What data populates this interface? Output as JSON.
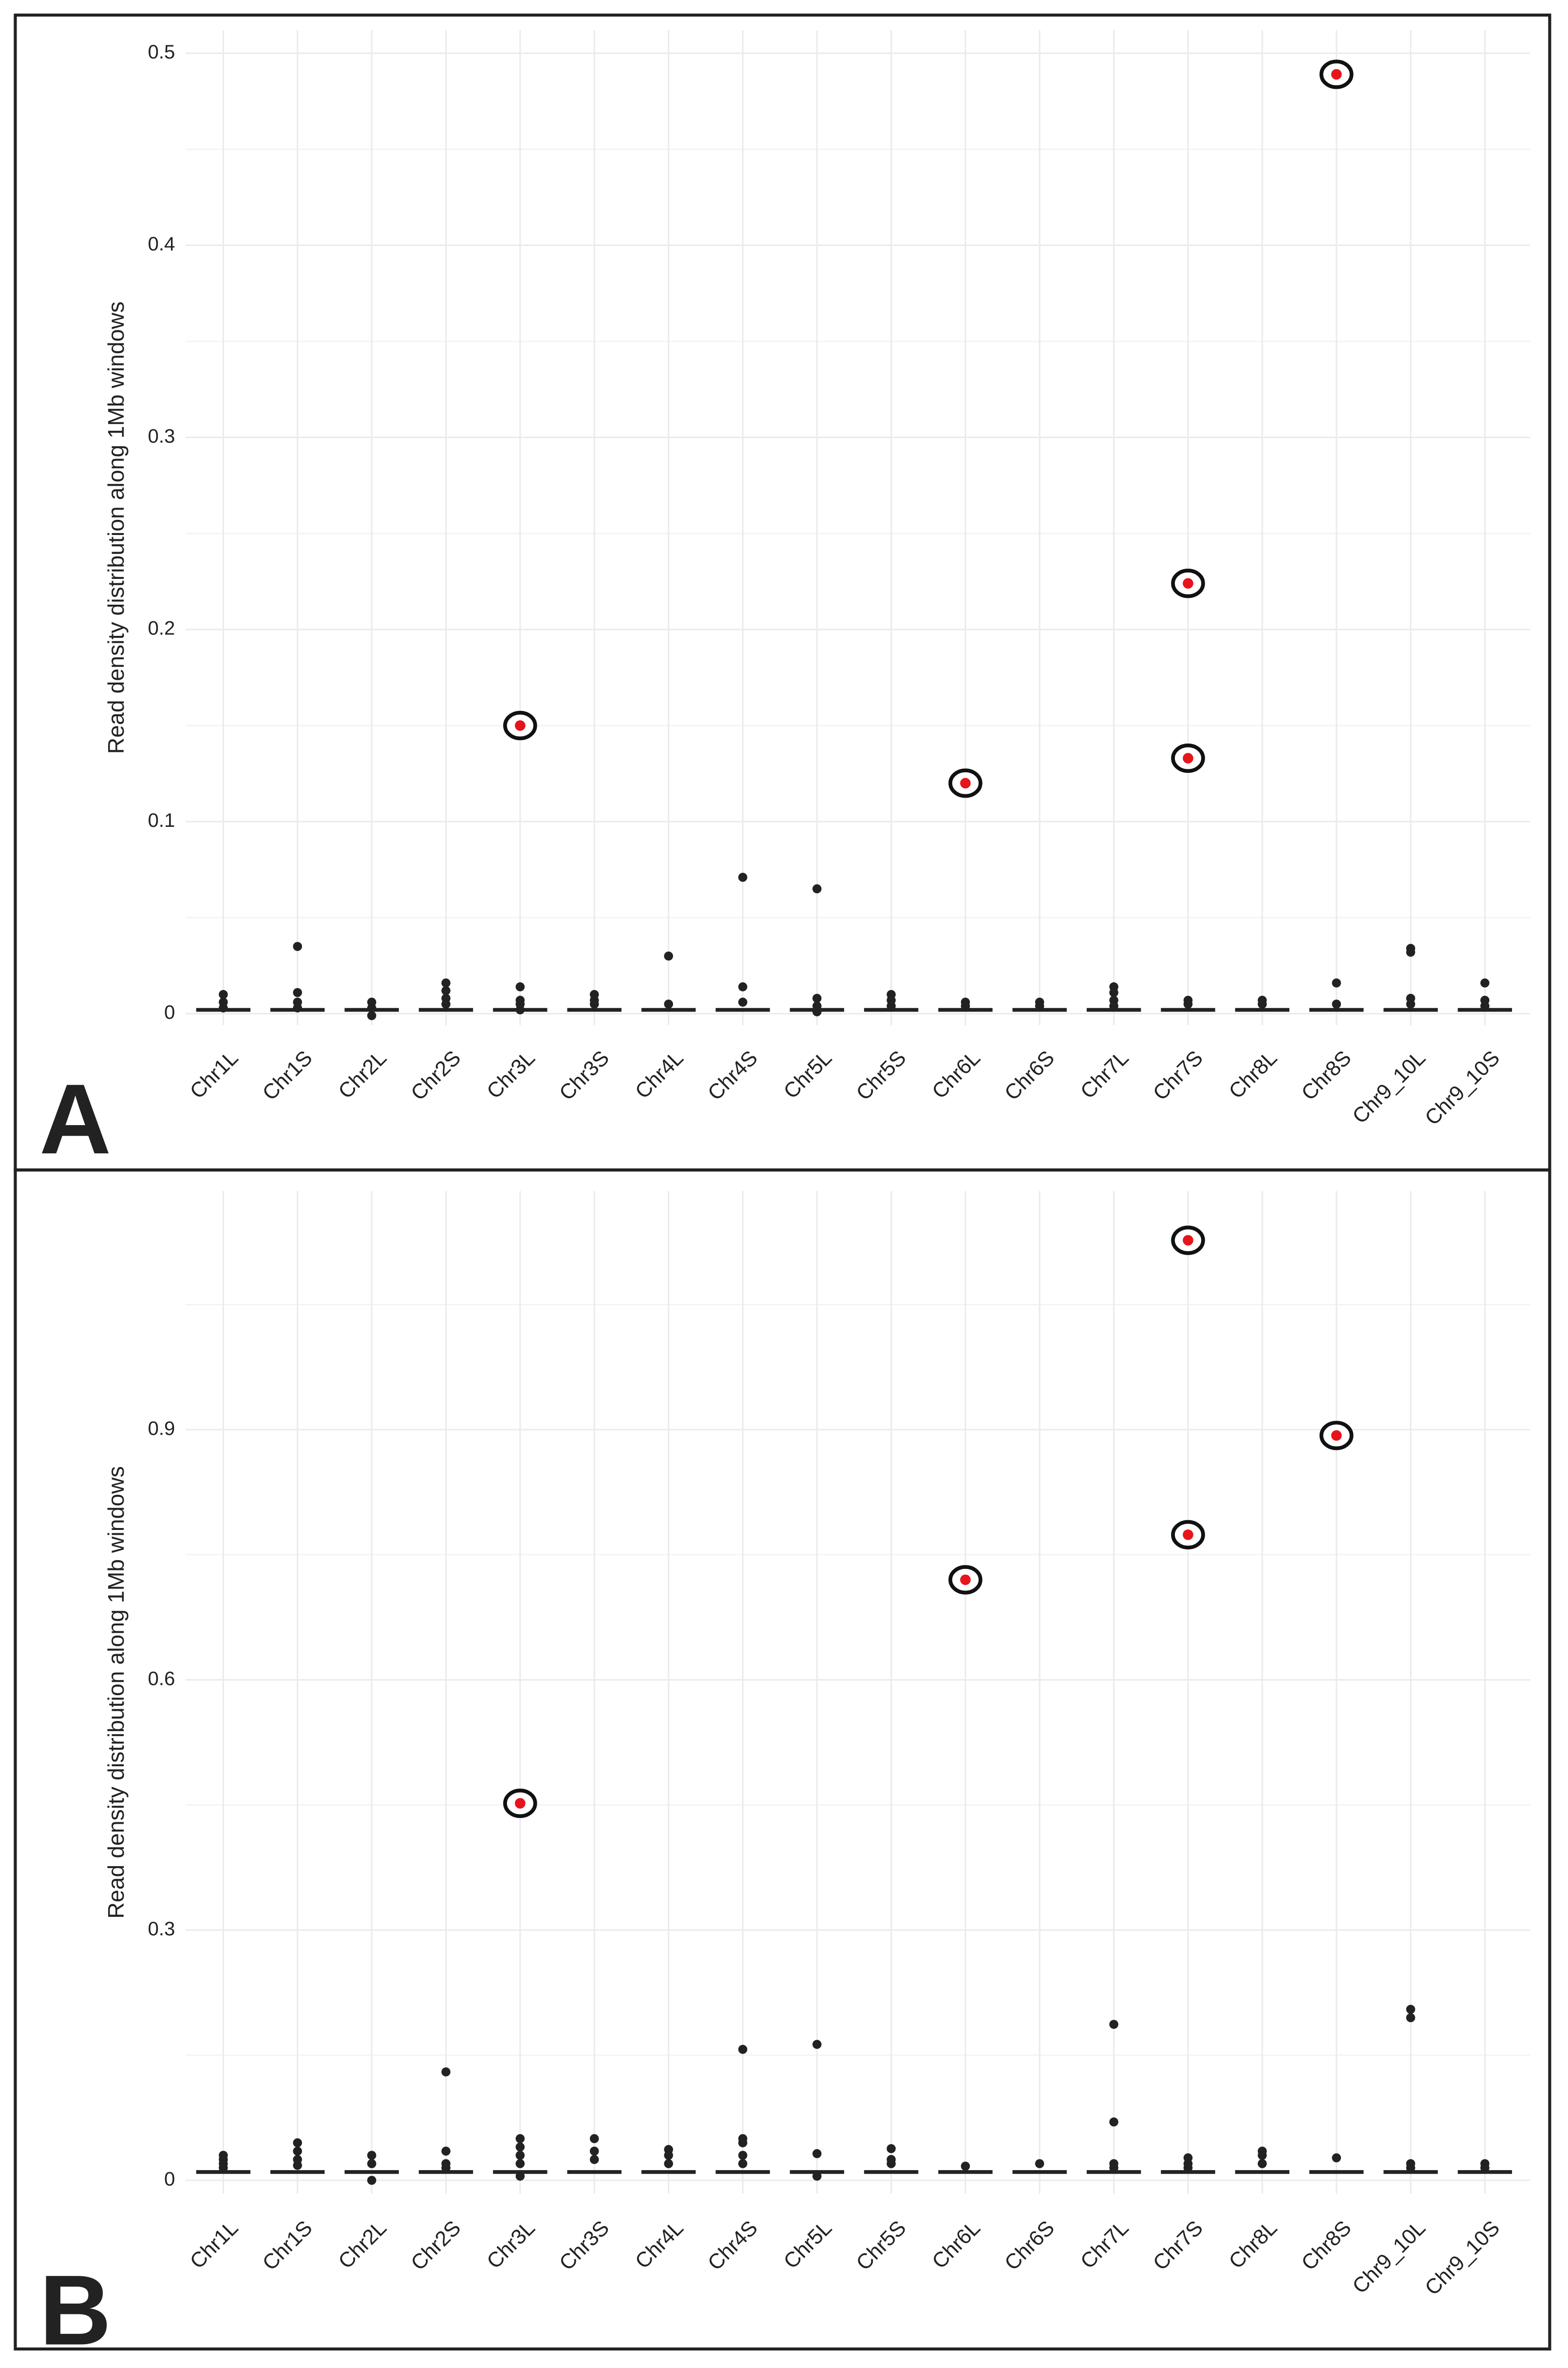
{
  "chart_data": [
    {
      "type": "box",
      "panel_label": "A",
      "y_label": "Read density distribution along 1Mb windows",
      "categories": [
        "Chr1L",
        "Chr1S",
        "Chr2L",
        "Chr2S",
        "Chr3L",
        "Chr3S",
        "Chr4L",
        "Chr4S",
        "Chr5L",
        "Chr5S",
        "Chr6L",
        "Chr6S",
        "Chr7L",
        "Chr7S",
        "Chr8L",
        "Chr8S",
        "Chr9_10L",
        "Chr9_10S"
      ],
      "medians": [
        0.002,
        0.002,
        0.002,
        0.002,
        0.002,
        0.002,
        0.002,
        0.002,
        0.002,
        0.002,
        0.002,
        0.002,
        0.002,
        0.002,
        0.002,
        0.002,
        0.002,
        0.002
      ],
      "outliers": [
        [
          0.01,
          0.006,
          0.003
        ],
        [
          0.035,
          0.011,
          0.006,
          0.003
        ],
        [
          0.006,
          0.003,
          -0.001
        ],
        [
          0.016,
          0.012,
          0.008,
          0.005
        ],
        [
          0.014,
          0.007,
          0.005,
          0.002
        ],
        [
          0.01,
          0.007,
          0.005
        ],
        [
          0.03,
          0.005
        ],
        [
          0.071,
          0.014,
          0.006
        ],
        [
          0.065,
          0.008,
          0.004,
          0.001
        ],
        [
          0.01,
          0.007,
          0.004
        ],
        [
          0.006,
          0.004
        ],
        [
          0.006,
          0.004
        ],
        [
          0.014,
          0.011,
          0.007,
          0.004
        ],
        [
          0.007,
          0.005
        ],
        [
          0.007,
          0.005
        ],
        [
          0.016,
          0.005
        ],
        [
          0.034,
          0.032,
          0.008,
          0.005
        ],
        [
          0.016,
          0.007,
          0.004
        ]
      ],
      "highlighted": [
        [],
        [],
        [],
        [],
        [
          0.15
        ],
        [],
        [],
        [],
        [],
        [],
        [
          0.12
        ],
        [],
        [],
        [
          0.224,
          0.133
        ],
        [],
        [
          0.489
        ],
        [],
        []
      ],
      "highlight_color": "#e8141c",
      "color": "#222222",
      "ylim": [
        -0.006,
        0.512
      ],
      "yticks": [
        0,
        0.1,
        0.2,
        0.3,
        0.4,
        0.5
      ],
      "grid": true
    },
    {
      "type": "box",
      "panel_label": "B",
      "y_label": "Read density distribution along 1Mb windows",
      "categories": [
        "Chr1L",
        "Chr1S",
        "Chr2L",
        "Chr2S",
        "Chr3L",
        "Chr3S",
        "Chr4L",
        "Chr4S",
        "Chr5L",
        "Chr5S",
        "Chr6L",
        "Chr6S",
        "Chr7L",
        "Chr7S",
        "Chr8L",
        "Chr8S",
        "Chr9_10L",
        "Chr9_10S"
      ],
      "medians": [
        0.01,
        0.01,
        0.01,
        0.01,
        0.01,
        0.01,
        0.01,
        0.01,
        0.01,
        0.01,
        0.01,
        0.01,
        0.01,
        0.01,
        0.01,
        0.01,
        0.01,
        0.01
      ],
      "outliers": [
        [
          0.03,
          0.025,
          0.02,
          0.015
        ],
        [
          0.045,
          0.035,
          0.025,
          0.018
        ],
        [
          0.03,
          0.02,
          0.0
        ],
        [
          0.13,
          0.035,
          0.02,
          0.015
        ],
        [
          0.05,
          0.04,
          0.03,
          0.02,
          0.005
        ],
        [
          0.05,
          0.035,
          0.025
        ],
        [
          0.037,
          0.03,
          0.02
        ],
        [
          0.157,
          0.05,
          0.045,
          0.03,
          0.02
        ],
        [
          0.163,
          0.032,
          0.005
        ],
        [
          0.038,
          0.025,
          0.02
        ],
        [
          0.017
        ],
        [
          0.02
        ],
        [
          0.187,
          0.07,
          0.02,
          0.015
        ],
        [
          0.027,
          0.02,
          0.015
        ],
        [
          0.035,
          0.03,
          0.02
        ],
        [
          0.027
        ],
        [
          0.205,
          0.195,
          0.02,
          0.015
        ],
        [
          0.02,
          0.015
        ]
      ],
      "highlighted": [
        [],
        [],
        [],
        [],
        [
          0.452
        ],
        [],
        [],
        [],
        [],
        [],
        [
          0.72
        ],
        [],
        [],
        [
          1.127,
          0.774
        ],
        [],
        [
          0.893
        ],
        [],
        []
      ],
      "highlight_color": "#e8141c",
      "color": "#222222",
      "ylim": [
        -0.016,
        1.186
      ],
      "yticks": [
        0,
        0.3,
        0.6,
        0.9
      ],
      "grid": true
    }
  ]
}
